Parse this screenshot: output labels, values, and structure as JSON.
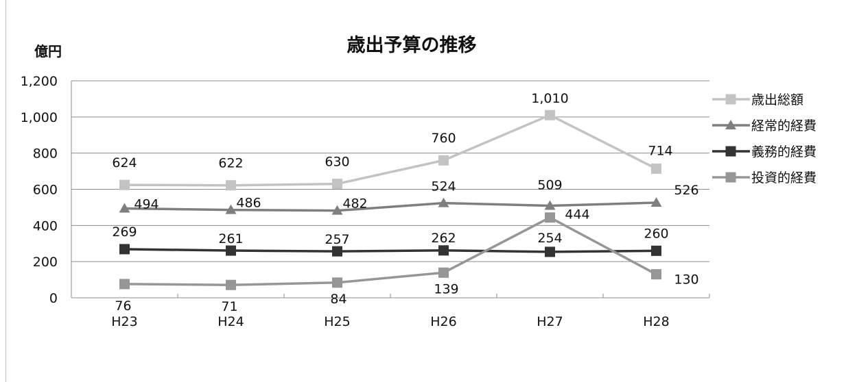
{
  "chart_data": {
    "type": "line",
    "title": "歳出予算の推移",
    "ylabel": "億円",
    "categories": [
      "H23",
      "H24",
      "H25",
      "H26",
      "H27",
      "H28"
    ],
    "ylim": [
      0,
      1200
    ],
    "yticks": [
      "0",
      "200",
      "400",
      "600",
      "800",
      "1,000",
      "1,200"
    ],
    "grid": true,
    "legend_position": "right",
    "series": [
      {
        "name": "歳出総額",
        "values": [
          624,
          622,
          630,
          760,
          1010,
          714
        ],
        "labels": [
          "624",
          "622",
          "630",
          "760",
          "1,010",
          "714"
        ],
        "color": "#c3c3c3",
        "marker": "square"
      },
      {
        "name": "経常的経費",
        "values": [
          494,
          486,
          482,
          524,
          509,
          526
        ],
        "labels": [
          "494",
          "486",
          "482",
          "524",
          "509",
          "526"
        ],
        "color": "#7f7f7f",
        "marker": "triangle"
      },
      {
        "name": "義務的経費",
        "values": [
          269,
          261,
          257,
          262,
          254,
          260
        ],
        "labels": [
          "269",
          "261",
          "257",
          "262",
          "254",
          "260"
        ],
        "color": "#333333",
        "marker": "square"
      },
      {
        "name": "投資的経費",
        "values": [
          76,
          71,
          84,
          139,
          444,
          130
        ],
        "labels": [
          "76",
          "71",
          "84",
          "139",
          "444",
          "130"
        ],
        "color": "#969696",
        "marker": "square"
      }
    ]
  }
}
